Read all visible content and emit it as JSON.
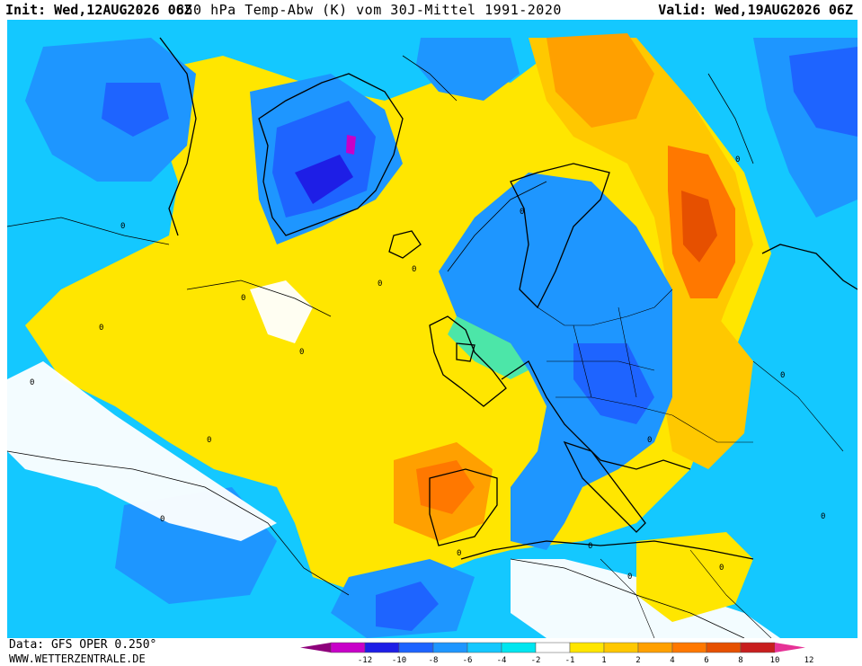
{
  "header": {
    "init": "Init: Wed,12AUG2026 06Z",
    "title": "850 hPa Temp-Abw (K) vom 30J-Mittel 1991-2020",
    "valid": "Valid: Wed,19AUG2026 06Z"
  },
  "map": {
    "contour_labels": [
      "0",
      "0",
      "0",
      "0",
      "0",
      "0",
      "0",
      "0",
      "0",
      "0",
      "0",
      "0",
      "0",
      "0",
      "0",
      "0",
      "0",
      "0"
    ]
  },
  "footer": {
    "source": "Data: GFS OPER 0.250°",
    "website": "WWW.WETTERZENTRALE.DE"
  },
  "legend": {
    "labels": [
      "-12",
      "-10",
      "-8",
      "-6",
      "-4",
      "-2",
      "-1",
      "1",
      "2",
      "4",
      "6",
      "8",
      "10",
      "12"
    ],
    "colors": [
      "#8e007b",
      "#c800c8",
      "#1e1ee6",
      "#1e64ff",
      "#1e96ff",
      "#14c8ff",
      "#00e6f0",
      "#ffffff",
      "#ffe600",
      "#ffc800",
      "#ffa000",
      "#ff7800",
      "#e65000",
      "#c81e1e",
      "#e63296"
    ]
  }
}
